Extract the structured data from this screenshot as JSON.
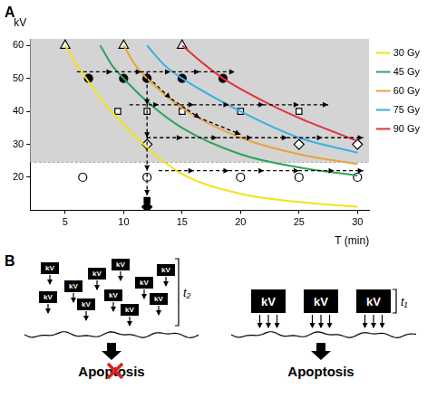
{
  "chart_data": {
    "type": "line",
    "panel_label": "A",
    "x_label": "T (min)",
    "y_label": "kV",
    "xlim": [
      2,
      31
    ],
    "xticks": [
      5,
      10,
      15,
      20,
      25,
      30
    ],
    "ylim": [
      10,
      62
    ],
    "yticks": [
      20,
      30,
      40,
      50,
      60
    ],
    "grid": false,
    "legend": "right",
    "shaded": {
      "above": 24.5,
      "color": "#d4d4d4"
    },
    "series": [
      {
        "name": "30 Gy",
        "type": "line",
        "color": "#f2e21a",
        "x": [
          5,
          6,
          7,
          8,
          10,
          12,
          15,
          20,
          25,
          30
        ],
        "values": [
          60,
          54,
          49,
          44,
          36,
          29,
          21,
          15,
          12.5,
          11
        ]
      },
      {
        "name": "45 Gy",
        "type": "line",
        "color": "#2ca25f",
        "x": [
          8,
          9,
          10,
          12,
          15,
          20,
          25,
          30
        ],
        "values": [
          60,
          54,
          50,
          43,
          35,
          27,
          23,
          20.5
        ]
      },
      {
        "name": "60 Gy",
        "type": "line",
        "color": "#e8a33d",
        "x": [
          10,
          11,
          12,
          15,
          20,
          25,
          30
        ],
        "values": [
          60,
          54,
          50,
          41,
          32,
          27,
          24
        ]
      },
      {
        "name": "75 Gy",
        "type": "line",
        "color": "#3ab0e2",
        "x": [
          12,
          13.5,
          15,
          20,
          25,
          30
        ],
        "values": [
          60,
          54,
          50,
          40,
          32,
          27.5
        ]
      },
      {
        "name": "90 Gy",
        "type": "line",
        "color": "#e0333c",
        "x": [
          15,
          17,
          18.5,
          22,
          25,
          30
        ],
        "values": [
          60,
          54,
          50,
          43,
          38,
          31
        ]
      },
      {
        "type": "scatter",
        "marker": "triangle-open",
        "color": "#000000",
        "x": [
          5,
          10,
          15
        ],
        "values": [
          60,
          60,
          60
        ]
      },
      {
        "type": "scatter",
        "marker": "circle-filled",
        "color": "#000000",
        "x": [
          7,
          10,
          12,
          15,
          18.5
        ],
        "values": [
          50,
          50,
          50,
          50,
          50
        ]
      },
      {
        "type": "scatter",
        "marker": "square-open",
        "color": "#000000",
        "x": [
          9.5,
          12,
          15,
          20,
          25
        ],
        "values": [
          40,
          40,
          40,
          40,
          40
        ]
      },
      {
        "type": "scatter",
        "marker": "diamond-open",
        "color": "#000000",
        "x": [
          12,
          25,
          30
        ],
        "values": [
          30,
          30,
          30
        ]
      },
      {
        "type": "scatter",
        "marker": "circle-open",
        "color": "#000000",
        "x": [
          6.5,
          12,
          20,
          25,
          30
        ],
        "values": [
          20,
          20,
          20,
          20,
          20
        ]
      },
      {
        "type": "scatter",
        "marker": "square-filled",
        "color": "#000000",
        "x": [
          12
        ],
        "values": [
          13
        ]
      },
      {
        "type": "scatter",
        "marker": "diamond-filled",
        "color": "#000000",
        "x": [
          12
        ],
        "values": [
          11
        ]
      }
    ],
    "arrows": [
      {
        "points": [
          [
            6,
            52
          ],
          [
            9,
            52
          ],
          [
            11.5,
            52
          ],
          [
            14,
            52
          ],
          [
            16.5,
            52
          ],
          [
            19.5,
            52
          ]
        ]
      },
      {
        "points": [
          [
            10.5,
            42
          ],
          [
            13,
            42
          ],
          [
            16,
            42
          ],
          [
            19,
            42
          ],
          [
            22,
            42
          ],
          [
            25,
            42
          ],
          [
            27.5,
            42
          ]
        ]
      },
      {
        "points": [
          [
            12,
            32
          ],
          [
            15,
            32
          ],
          [
            18,
            32
          ],
          [
            21,
            32
          ],
          [
            24,
            32
          ],
          [
            27,
            32
          ],
          [
            30.5,
            32
          ]
        ]
      },
      {
        "points": [
          [
            13,
            22
          ],
          [
            16,
            22
          ],
          [
            19,
            22
          ],
          [
            22,
            22
          ],
          [
            25,
            22
          ],
          [
            28,
            22
          ],
          [
            30.5,
            22
          ]
        ]
      },
      {
        "points": [
          [
            12,
            52
          ],
          [
            12,
            42
          ],
          [
            12,
            32
          ],
          [
            12,
            22
          ],
          [
            12,
            14.5
          ]
        ]
      },
      {
        "points": [
          [
            12.5,
            49
          ],
          [
            14,
            44
          ],
          [
            16.5,
            38
          ],
          [
            20,
            33
          ]
        ]
      }
    ]
  },
  "diagram": {
    "panel_label": "B",
    "groups": [
      {
        "box_label": "kV",
        "boxes": 11,
        "arrows_per_box": 1,
        "interval": "t₂",
        "outcome": "Apoptosis",
        "blocked": true
      },
      {
        "box_label": "kV",
        "boxes": 3,
        "arrows_per_box": 3,
        "interval": "t₁",
        "outcome": "Apoptosis",
        "blocked": false
      }
    ]
  }
}
